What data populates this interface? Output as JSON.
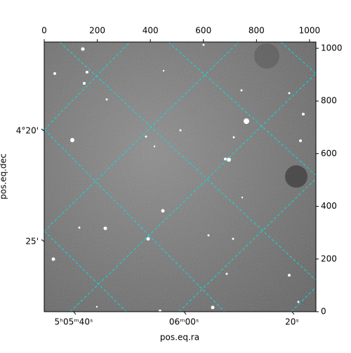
{
  "chart_data": {
    "type": "image",
    "xlabel": "pos.eq.ra",
    "ylabel": "pos.eq.dec",
    "xlim": [
      0,
      1024
    ],
    "ylim": [
      0,
      1024
    ],
    "xticks": [
      0,
      200,
      400,
      600,
      800,
      1000
    ],
    "yticks": [
      0,
      200,
      400,
      600,
      800,
      1000
    ],
    "world_xticks": [
      {
        "value": 111,
        "label": "5ʰ05ᵐ40ˢ"
      },
      {
        "value": 527,
        "label": "06ᵐ00ˢ"
      },
      {
        "value": 934,
        "label": "20ˢ"
      }
    ],
    "world_yticks": [
      {
        "value": 686,
        "label": "4°20'"
      },
      {
        "value": 266,
        "label": "25'"
      }
    ],
    "grid_color": "#00ffff"
  }
}
